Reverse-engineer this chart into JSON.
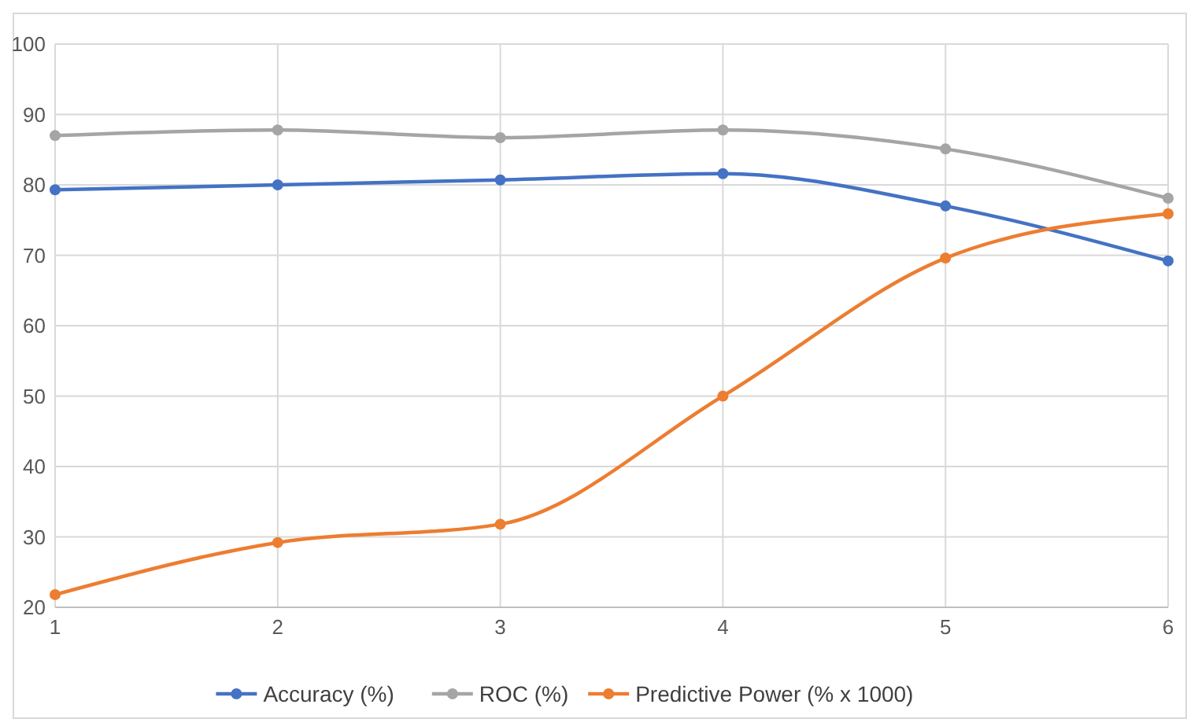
{
  "chart_data": {
    "type": "line",
    "x": [
      1,
      2,
      3,
      4,
      5,
      6
    ],
    "series": [
      {
        "name": "Accuracy (%)",
        "color": "#4472c4",
        "values": [
          79.3,
          80.0,
          80.7,
          81.6,
          77.0,
          69.2
        ]
      },
      {
        "name": "ROC (%)",
        "color": "#a5a5a5",
        "values": [
          87.0,
          87.8,
          86.7,
          87.8,
          85.1,
          78.1
        ]
      },
      {
        "name": "Predictive Power (% x 1000)",
        "color": "#ed7d31",
        "values": [
          21.8,
          29.2,
          31.8,
          50.0,
          69.6,
          75.9
        ]
      }
    ],
    "xlim": [
      1,
      6
    ],
    "xticks": [
      1,
      2,
      3,
      4,
      5,
      6
    ],
    "ylim": [
      20,
      100
    ],
    "yticks": [
      20,
      30,
      40,
      50,
      60,
      70,
      80,
      90,
      100
    ],
    "grid": true,
    "legend": "bottom",
    "marker": "circle",
    "line_style": "solid"
  }
}
